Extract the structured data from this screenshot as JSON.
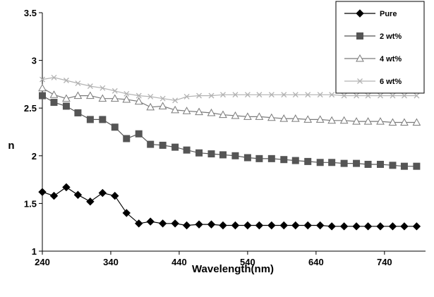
{
  "chart_data": {
    "type": "line",
    "title": "",
    "xlabel": "Wavelength(nm)",
    "ylabel": "n",
    "xlim": [
      240,
      800
    ],
    "ylim": [
      1,
      3.5
    ],
    "xticks": [
      240,
      340,
      440,
      540,
      640,
      740
    ],
    "yticks": [
      1,
      1.5,
      2,
      2.5,
      3,
      3.5
    ],
    "xtick_labels": [
      "240",
      "340",
      "440",
      "540",
      "640",
      "740"
    ],
    "ytick_labels": [
      "1",
      "1.5",
      "2",
      "2.5",
      "3",
      "3.5"
    ],
    "grid": false,
    "legend_position": "top-right",
    "series": [
      {
        "name": "Pure",
        "color": "#000000",
        "marker": "diamond-filled",
        "x": [
          240,
          257,
          275,
          292,
          310,
          328,
          346,
          363,
          381,
          398,
          416,
          434,
          451,
          469,
          487,
          504,
          522,
          540,
          557,
          575,
          593,
          610,
          628,
          646,
          663,
          681,
          699,
          716,
          734,
          752,
          769,
          787
        ],
        "values": [
          1.62,
          1.58,
          1.67,
          1.59,
          1.52,
          1.61,
          1.58,
          1.4,
          1.29,
          1.31,
          1.29,
          1.29,
          1.27,
          1.28,
          1.28,
          1.27,
          1.27,
          1.27,
          1.27,
          1.27,
          1.27,
          1.27,
          1.27,
          1.27,
          1.26,
          1.26,
          1.26,
          1.26,
          1.26,
          1.26,
          1.26,
          1.26
        ]
      },
      {
        "name": "2 wt%",
        "color": "#555555",
        "marker": "square-filled",
        "x": [
          240,
          257,
          275,
          292,
          310,
          328,
          346,
          363,
          381,
          398,
          416,
          434,
          451,
          469,
          487,
          504,
          522,
          540,
          557,
          575,
          593,
          610,
          628,
          646,
          663,
          681,
          699,
          716,
          734,
          752,
          769,
          787
        ],
        "values": [
          2.63,
          2.56,
          2.52,
          2.45,
          2.38,
          2.38,
          2.3,
          2.18,
          2.23,
          2.12,
          2.11,
          2.09,
          2.06,
          2.03,
          2.02,
          2.01,
          2.0,
          1.98,
          1.97,
          1.97,
          1.96,
          1.95,
          1.94,
          1.93,
          1.93,
          1.92,
          1.92,
          1.91,
          1.91,
          1.9,
          1.89,
          1.89
        ]
      },
      {
        "name": "4 wt%",
        "color": "#7a7a7a",
        "marker": "triangle-open",
        "x": [
          240,
          257,
          275,
          292,
          310,
          328,
          346,
          363,
          381,
          398,
          416,
          434,
          451,
          469,
          487,
          504,
          522,
          540,
          557,
          575,
          593,
          610,
          628,
          646,
          663,
          681,
          699,
          716,
          734,
          752,
          769,
          787
        ],
        "values": [
          2.71,
          2.64,
          2.6,
          2.63,
          2.63,
          2.6,
          2.6,
          2.59,
          2.57,
          2.51,
          2.52,
          2.48,
          2.47,
          2.46,
          2.45,
          2.43,
          2.42,
          2.41,
          2.41,
          2.4,
          2.39,
          2.39,
          2.38,
          2.38,
          2.37,
          2.37,
          2.36,
          2.36,
          2.36,
          2.35,
          2.35,
          2.35
        ]
      },
      {
        "name": "6 wt%",
        "color": "#b3b3b3",
        "marker": "x",
        "x": [
          240,
          257,
          275,
          292,
          310,
          328,
          346,
          363,
          381,
          398,
          416,
          434,
          451,
          469,
          487,
          504,
          522,
          540,
          557,
          575,
          593,
          610,
          628,
          646,
          663,
          681,
          699,
          716,
          734,
          752,
          769,
          787
        ],
        "values": [
          2.8,
          2.82,
          2.79,
          2.76,
          2.73,
          2.71,
          2.68,
          2.65,
          2.63,
          2.62,
          2.6,
          2.58,
          2.62,
          2.63,
          2.63,
          2.64,
          2.64,
          2.64,
          2.64,
          2.64,
          2.64,
          2.64,
          2.64,
          2.64,
          2.64,
          2.63,
          2.63,
          2.63,
          2.63,
          2.63,
          2.63,
          2.63
        ]
      }
    ]
  }
}
